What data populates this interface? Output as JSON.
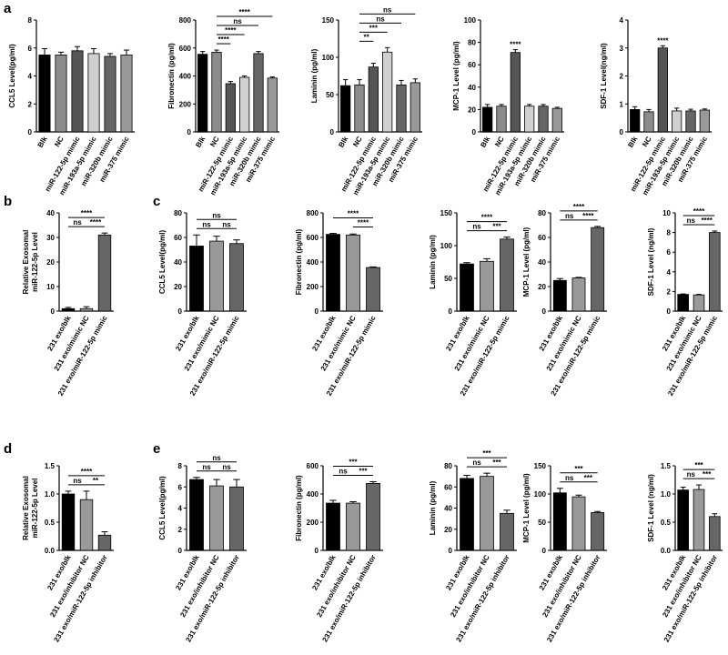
{
  "panel_labels": [
    "a",
    "b",
    "c",
    "d",
    "e"
  ],
  "chart_data": [
    {
      "type": "bar",
      "y_label": [
        "CCL5 Level(pg/ml)"
      ],
      "categories": [
        "Blk",
        "NC",
        "miR-122-5p mimic",
        "miR-193a-5p mimic",
        "miR-320b mimic",
        "miR-375 mimic"
      ],
      "values": [
        5.5,
        5.5,
        5.8,
        5.6,
        5.4,
        5.5
      ],
      "errors": [
        0.45,
        0.2,
        0.3,
        0.35,
        0.2,
        0.35
      ],
      "colors": [
        "#000000",
        "#8c8c8c",
        "#555555",
        "#d0d0d0",
        "#666666",
        "#999999"
      ],
      "ylim": [
        0,
        8
      ],
      "yticks": [
        0,
        2,
        4,
        6,
        8
      ],
      "annotations": []
    },
    {
      "type": "bar",
      "y_label": [
        "Fibronectin (pg/ml)"
      ],
      "categories": [
        "Blk",
        "NC",
        "miR-122-5p mimic",
        "miR-193a-5p mimic",
        "miR-320b mimic",
        "miR-375 mimic"
      ],
      "values": [
        555,
        570,
        345,
        390,
        560,
        385
      ],
      "errors": [
        20,
        15,
        15,
        10,
        15,
        8
      ],
      "colors": [
        "#000000",
        "#8c8c8c",
        "#555555",
        "#d0d0d0",
        "#666666",
        "#999999"
      ],
      "ylim": [
        0,
        800
      ],
      "yticks": [
        0,
        200,
        400,
        600,
        800
      ],
      "annotations": [
        {
          "from": 1,
          "to": 2,
          "text": "****"
        },
        {
          "from": 1,
          "to": 3,
          "text": "****"
        },
        {
          "from": 1,
          "to": 4,
          "text": "ns"
        },
        {
          "from": 1,
          "to": 5,
          "text": "****"
        }
      ]
    },
    {
      "type": "bar",
      "y_label": [
        "Laminin (pg/ml)"
      ],
      "categories": [
        "Blk",
        "NC",
        "miR-122-5p mimic",
        "miR-193a-5p mimic",
        "miR-320b mimic",
        "miR-375 mimic"
      ],
      "values": [
        62,
        63,
        87,
        107,
        63,
        66
      ],
      "errors": [
        8,
        7,
        5,
        6,
        6,
        5
      ],
      "colors": [
        "#000000",
        "#8c8c8c",
        "#555555",
        "#d0d0d0",
        "#666666",
        "#999999"
      ],
      "ylim": [
        0,
        150
      ],
      "yticks": [
        0,
        50,
        100,
        150
      ],
      "annotations": [
        {
          "from": 1,
          "to": 2,
          "text": "**"
        },
        {
          "from": 1,
          "to": 3,
          "text": "***"
        },
        {
          "from": 1,
          "to": 4,
          "text": "ns"
        },
        {
          "from": 1,
          "to": 5,
          "text": "ns"
        }
      ]
    },
    {
      "type": "bar",
      "y_label": [
        "MCP-1 Level (pg/ml)"
      ],
      "categories": [
        "Blk",
        "NC",
        "miR-122-5p mimic",
        "miR-193a-5p mimic",
        "miR-320b mimic",
        "miR-375 mimic"
      ],
      "values": [
        22,
        23,
        71,
        23,
        23,
        21
      ],
      "errors": [
        2.5,
        1.5,
        2.5,
        1.5,
        1.5,
        1
      ],
      "colors": [
        "#000000",
        "#8c8c8c",
        "#555555",
        "#d0d0d0",
        "#666666",
        "#999999"
      ],
      "ylim": [
        0,
        100
      ],
      "yticks": [
        0,
        20,
        40,
        60,
        80,
        100
      ],
      "annotations": [
        {
          "from": 2,
          "to": 2,
          "text": "****"
        }
      ]
    },
    {
      "type": "bar",
      "y_label": [
        "SDF-1 Level(ng/ml)"
      ],
      "categories": [
        "Blk",
        "NC",
        "miR-122-5p mimic",
        "miR-193a-5p mimic",
        "miR-320b mimic",
        "miR-375 mimic"
      ],
      "values": [
        0.8,
        0.72,
        3.0,
        0.75,
        0.75,
        0.78
      ],
      "errors": [
        0.1,
        0.08,
        0.08,
        0.1,
        0.06,
        0.04
      ],
      "colors": [
        "#000000",
        "#8c8c8c",
        "#555555",
        "#d0d0d0",
        "#666666",
        "#999999"
      ],
      "ylim": [
        0,
        4
      ],
      "yticks": [
        0,
        1,
        2,
        3,
        4
      ],
      "annotations": [
        {
          "from": 2,
          "to": 2,
          "text": "****"
        }
      ]
    },
    {
      "type": "bar",
      "y_label": [
        "Relative Exosomal",
        "miR-122-5p Level"
      ],
      "categories": [
        "231 exo/blk",
        "231 exo/mimic NC",
        "231 exo/miR-122-5p mimic"
      ],
      "values": [
        1,
        1,
        31
      ],
      "errors": [
        0.5,
        0.8,
        0.8
      ],
      "colors": [
        "#000000",
        "#999999",
        "#666666"
      ],
      "ylim": [
        0,
        40
      ],
      "yticks": [
        0,
        10,
        20,
        30,
        40
      ],
      "annotations": [
        {
          "from": 0,
          "to": 1,
          "text": "ns"
        },
        {
          "from": 1,
          "to": 2,
          "text": "****"
        },
        {
          "from": 0,
          "to": 2,
          "text": "****"
        }
      ]
    },
    {
      "type": "bar",
      "y_label": [
        "CCL5 Level(pg/ml)"
      ],
      "categories": [
        "231 exo/blk",
        "231 exo/mimic NC",
        "231 exo/miR-122-5p mimic"
      ],
      "values": [
        53,
        57,
        55
      ],
      "errors": [
        9,
        4,
        3
      ],
      "colors": [
        "#000000",
        "#999999",
        "#666666"
      ],
      "ylim": [
        0,
        80
      ],
      "yticks": [
        0,
        20,
        40,
        60,
        80
      ],
      "annotations": [
        {
          "from": 0,
          "to": 1,
          "text": "ns"
        },
        {
          "from": 1,
          "to": 2,
          "text": "ns"
        },
        {
          "from": 0,
          "to": 2,
          "text": "ns"
        }
      ]
    },
    {
      "type": "bar",
      "y_label": [
        "Fibronectin (pg/ml)"
      ],
      "categories": [
        "231 exo/blk",
        "231 exo/mimic NC",
        "231 exo/miR-122-5p mimic"
      ],
      "values": [
        625,
        620,
        355
      ],
      "errors": [
        8,
        8,
        5
      ],
      "colors": [
        "#000000",
        "#999999",
        "#666666"
      ],
      "ylim": [
        0,
        800
      ],
      "yticks": [
        0,
        200,
        400,
        600,
        800
      ],
      "annotations": [
        {
          "from": 1,
          "to": 2,
          "text": "****"
        },
        {
          "from": 0,
          "to": 2,
          "text": "****"
        }
      ]
    },
    {
      "type": "bar",
      "y_label": [
        "Laminin (pg/ml)"
      ],
      "categories": [
        "231 exo/blk",
        "231 exo/mimic NC",
        "231 exo/miR-122-5p mimic"
      ],
      "values": [
        72,
        76,
        110
      ],
      "errors": [
        2,
        4,
        3
      ],
      "colors": [
        "#000000",
        "#999999",
        "#666666"
      ],
      "ylim": [
        0,
        150
      ],
      "yticks": [
        0,
        50,
        100,
        150
      ],
      "annotations": [
        {
          "from": 0,
          "to": 1,
          "text": "ns"
        },
        {
          "from": 1,
          "to": 2,
          "text": "***"
        },
        {
          "from": 0,
          "to": 2,
          "text": "****"
        }
      ]
    },
    {
      "type": "bar",
      "y_label": [
        "MCP-1 Level (pg/ml)"
      ],
      "categories": [
        "231 exo/blk",
        "231 exo/mimic NC",
        "231 exo/miR-122-5p mimic"
      ],
      "values": [
        25,
        27,
        68
      ],
      "errors": [
        1.5,
        0.5,
        1
      ],
      "colors": [
        "#000000",
        "#999999",
        "#666666"
      ],
      "ylim": [
        0,
        80
      ],
      "yticks": [
        0,
        20,
        40,
        60,
        80
      ],
      "annotations": [
        {
          "from": 0,
          "to": 1,
          "text": "ns"
        },
        {
          "from": 1,
          "to": 2,
          "text": "****"
        },
        {
          "from": 0,
          "to": 2,
          "text": "****"
        }
      ]
    },
    {
      "type": "bar",
      "y_label": [
        "SDF-1 Level (ng/ml)"
      ],
      "categories": [
        "231 exo/blk",
        "231 exo/mimic NC",
        "231 exo/miR-122-5p mimic"
      ],
      "values": [
        1.7,
        1.65,
        8.0
      ],
      "errors": [
        0.05,
        0.05,
        0.15
      ],
      "colors": [
        "#000000",
        "#999999",
        "#666666"
      ],
      "ylim": [
        0,
        10
      ],
      "yticks": [
        0,
        2,
        4,
        6,
        8,
        10
      ],
      "annotations": [
        {
          "from": 0,
          "to": 1,
          "text": "ns"
        },
        {
          "from": 1,
          "to": 2,
          "text": "****"
        },
        {
          "from": 0,
          "to": 2,
          "text": "****"
        }
      ]
    },
    {
      "type": "bar",
      "y_label": [
        "Relative Exosomal",
        "miR-122-5p Level"
      ],
      "categories": [
        "231 exo/blk",
        "231 exo/inhibitor NC",
        "231 exo/miR-122-5p inhibitor"
      ],
      "values": [
        1.0,
        0.9,
        0.27
      ],
      "errors": [
        0.05,
        0.15,
        0.06
      ],
      "colors": [
        "#000000",
        "#999999",
        "#666666"
      ],
      "ylim": [
        0,
        1.5
      ],
      "yticks": [
        {
          "value": 0,
          "label": "0.0"
        },
        {
          "value": 0.5,
          "label": "0.5"
        },
        {
          "value": 1,
          "label": "1.0"
        },
        {
          "value": 1.5,
          "label": "1.5"
        }
      ],
      "annotations": [
        {
          "from": 0,
          "to": 1,
          "text": "ns"
        },
        {
          "from": 1,
          "to": 2,
          "text": "**"
        },
        {
          "from": 0,
          "to": 2,
          "text": "****"
        }
      ]
    },
    {
      "type": "bar",
      "y_label": [
        "CCL5 Level(pg/ml)"
      ],
      "categories": [
        "231 exo/blk",
        "231 exo/inhibitor NC",
        "231 exo/miR-122-5p inhibitor"
      ],
      "values": [
        6.7,
        6.1,
        6.0
      ],
      "errors": [
        0.2,
        0.6,
        0.7
      ],
      "colors": [
        "#000000",
        "#999999",
        "#666666"
      ],
      "ylim": [
        0,
        8
      ],
      "yticks": [
        0,
        2,
        4,
        6,
        8
      ],
      "annotations": [
        {
          "from": 0,
          "to": 1,
          "text": "ns"
        },
        {
          "from": 1,
          "to": 2,
          "text": "ns"
        },
        {
          "from": 0,
          "to": 2,
          "text": "ns"
        }
      ]
    },
    {
      "type": "bar",
      "y_label": [
        "Fibronectin (pg/ml)"
      ],
      "categories": [
        "231 exo/blk",
        "231 exo/inhibitor NC",
        "231 exo/miR-122-5p inhibitor"
      ],
      "values": [
        335,
        335,
        475
      ],
      "errors": [
        20,
        10,
        12
      ],
      "colors": [
        "#000000",
        "#999999",
        "#666666"
      ],
      "ylim": [
        0,
        600
      ],
      "yticks": [
        0,
        200,
        400,
        600
      ],
      "annotations": [
        {
          "from": 0,
          "to": 1,
          "text": "ns"
        },
        {
          "from": 1,
          "to": 2,
          "text": "***"
        },
        {
          "from": 0,
          "to": 2,
          "text": "***"
        }
      ]
    },
    {
      "type": "bar",
      "y_label": [
        "Laminin (pg/ml)"
      ],
      "categories": [
        "231 exo/blk",
        "231 exo/inhibitor NC",
        "231 exo/miR-122-5p inhibitor"
      ],
      "values": [
        68,
        70,
        35
      ],
      "errors": [
        3,
        3,
        3
      ],
      "colors": [
        "#000000",
        "#999999",
        "#666666"
      ],
      "ylim": [
        0,
        80
      ],
      "yticks": [
        0,
        20,
        40,
        60,
        80
      ],
      "annotations": [
        {
          "from": 0,
          "to": 1,
          "text": "ns"
        },
        {
          "from": 1,
          "to": 2,
          "text": "***"
        },
        {
          "from": 0,
          "to": 2,
          "text": "***"
        }
      ]
    },
    {
      "type": "bar",
      "y_label": [
        "MCP-1 Level (pg/ml)"
      ],
      "categories": [
        "231 exo/blk",
        "231 exo/inhibitor NC",
        "231 exo/miR-122-5p inhibitor"
      ],
      "values": [
        102,
        95,
        67
      ],
      "errors": [
        8,
        3,
        2
      ],
      "colors": [
        "#000000",
        "#999999",
        "#666666"
      ],
      "ylim": [
        0,
        150
      ],
      "yticks": [
        0,
        50,
        100,
        150
      ],
      "annotations": [
        {
          "from": 0,
          "to": 1,
          "text": "ns"
        },
        {
          "from": 1,
          "to": 2,
          "text": "***"
        },
        {
          "from": 0,
          "to": 2,
          "text": "***"
        }
      ]
    },
    {
      "type": "bar",
      "y_label": [
        "SDF-1 Level (ng/ml)"
      ],
      "categories": [
        "231 exo/blk",
        "231 exo/inhibitor NC",
        "231 exo/miR-122-5p inhibitor"
      ],
      "values": [
        1.07,
        1.08,
        0.6
      ],
      "errors": [
        0.05,
        0.08,
        0.05
      ],
      "colors": [
        "#000000",
        "#999999",
        "#666666"
      ],
      "ylim": [
        0,
        1.5
      ],
      "yticks": [
        {
          "value": 0,
          "label": "0.0"
        },
        {
          "value": 0.5,
          "label": "0.5"
        },
        {
          "value": 1,
          "label": "1.0"
        },
        {
          "value": 1.5,
          "label": "1.5"
        }
      ],
      "annotations": [
        {
          "from": 0,
          "to": 1,
          "text": "ns"
        },
        {
          "from": 1,
          "to": 2,
          "text": "***"
        },
        {
          "from": 0,
          "to": 2,
          "text": "***"
        }
      ]
    }
  ]
}
